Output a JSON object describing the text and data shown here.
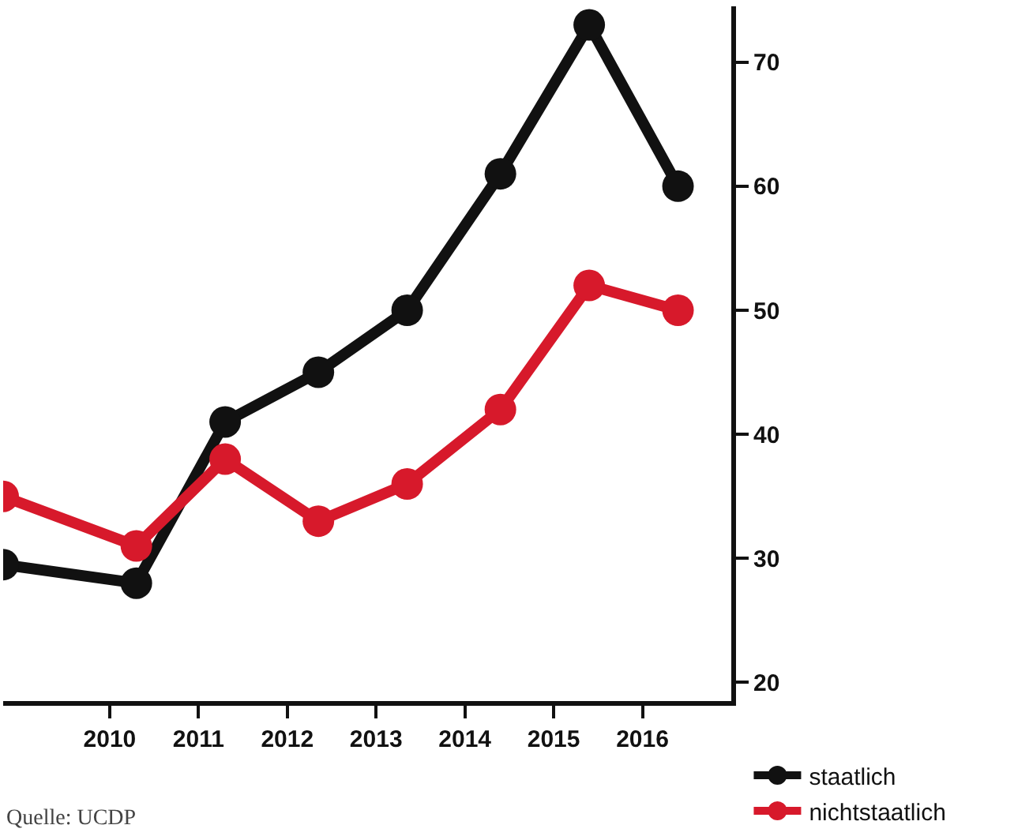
{
  "chart_data": {
    "type": "line",
    "x": [
      2008.8,
      2010.3,
      2011.3,
      2012.35,
      2013.35,
      2014.4,
      2015.4,
      2016.4
    ],
    "series": [
      {
        "name": "staatlich",
        "color": "#111111",
        "values": [
          29.5,
          28,
          41,
          45,
          50,
          61,
          73,
          60
        ]
      },
      {
        "name": "nichtstaatlich",
        "color": "#d7192b",
        "values": [
          35,
          31,
          38,
          33,
          36,
          42,
          52,
          50
        ]
      }
    ],
    "xlim": [
      2008.8,
      2017.0
    ],
    "xticks": [
      2010,
      2011,
      2012,
      2013,
      2014,
      2015,
      2016
    ],
    "ylim": [
      18.5,
      74.5
    ],
    "yticks": [
      20,
      30,
      40,
      50,
      60,
      70
    ],
    "marker": "circle",
    "line_style": "solid",
    "legend": "bottom right",
    "annotations": [
      "Quelle: UCDP"
    ]
  }
}
